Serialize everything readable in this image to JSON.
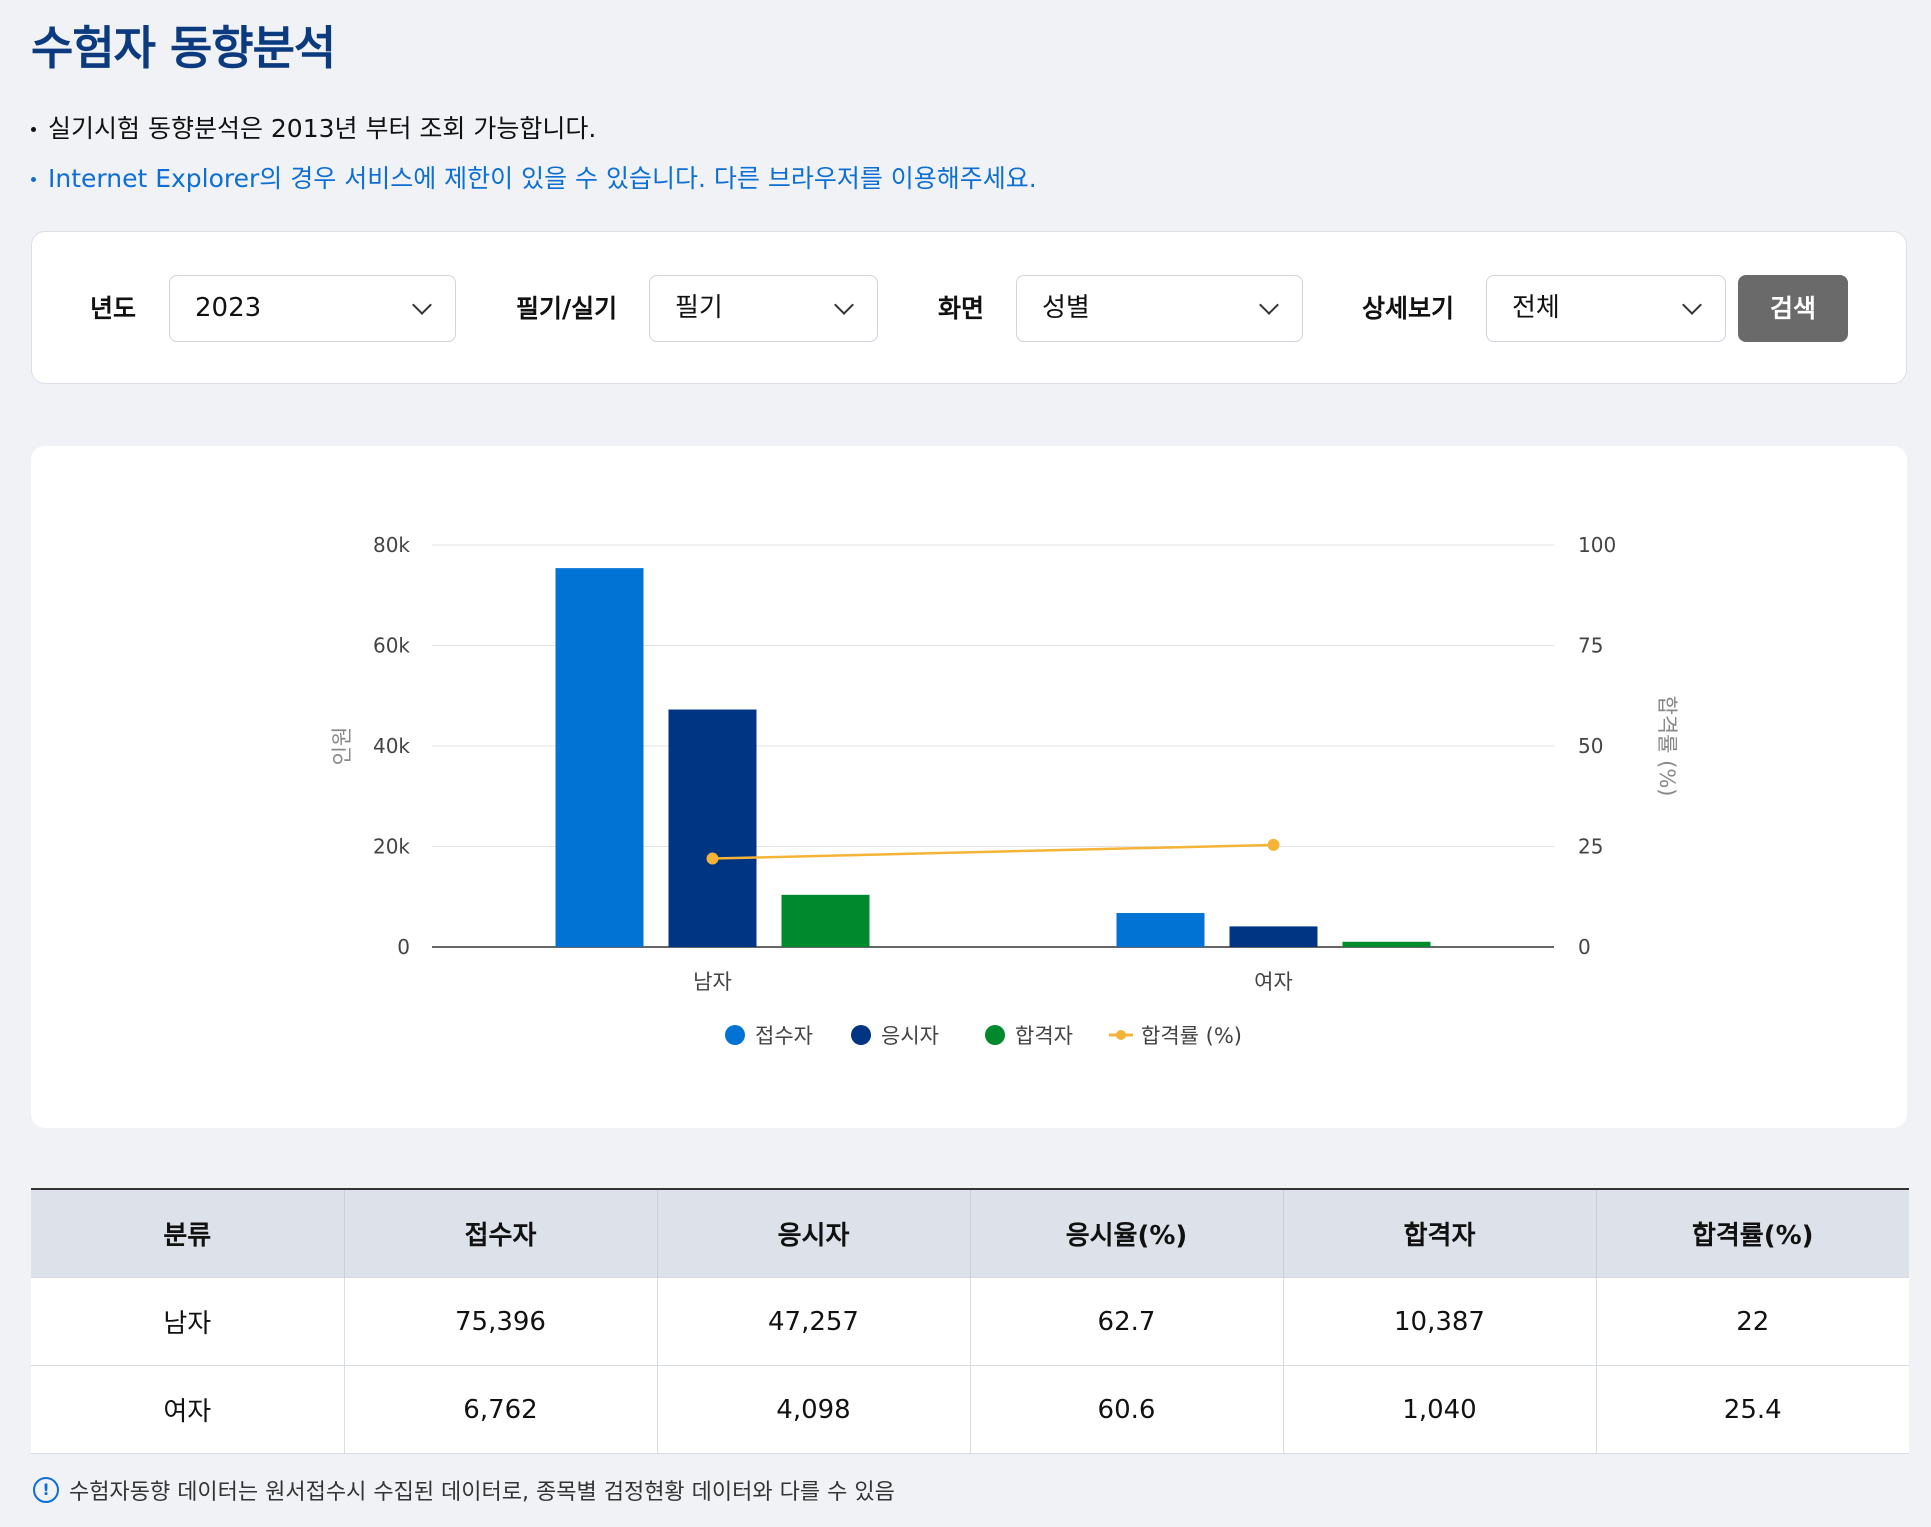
{
  "page_title": "수험자 동향분석",
  "notes": [
    "실기시험 동향분석은 2013년 부터 조회 가능합니다.",
    "Internet Explorer의 경우 서비스에 제한이 있을 수 있습니다. 다른 브라우저를 이용해주세요."
  ],
  "filters": {
    "year": {
      "label": "년도",
      "value": "2023"
    },
    "exam_type": {
      "label": "필기/실기",
      "value": "필기"
    },
    "screen": {
      "label": "화면",
      "value": "성별"
    },
    "detail": {
      "label": "상세보기",
      "value": "전체"
    },
    "search_label": "검색"
  },
  "chart_data": {
    "type": "bar",
    "categories": [
      "남자",
      "여자"
    ],
    "series": [
      {
        "name": "접수자",
        "type": "bar",
        "axis": "left",
        "color": "#0073d4",
        "values": [
          75396,
          6762
        ]
      },
      {
        "name": "응시자",
        "type": "bar",
        "axis": "left",
        "color": "#003584",
        "values": [
          47257,
          4098
        ]
      },
      {
        "name": "합격자",
        "type": "bar",
        "axis": "left",
        "color": "#00892d",
        "values": [
          10387,
          1040
        ]
      },
      {
        "name": "합격률 (%)",
        "type": "line",
        "axis": "right",
        "color": "#f5b338",
        "values": [
          22,
          25.4
        ]
      }
    ],
    "ylabel": "인원",
    "y2label": "합격률 (%)",
    "ylim": [
      0,
      80000
    ],
    "y2lim": [
      0,
      100
    ],
    "yticks": [
      "0",
      "20k",
      "40k",
      "60k",
      "80k"
    ],
    "y2ticks": [
      "0",
      "25",
      "50",
      "75",
      "100"
    ],
    "grid": true,
    "legend": "bottom"
  },
  "table": {
    "headers": [
      "분류",
      "접수자",
      "응시자",
      "응시율(%)",
      "합격자",
      "합격률(%)"
    ],
    "rows": [
      [
        "남자",
        "75,396",
        "47,257",
        "62.7",
        "10,387",
        "22"
      ],
      [
        "여자",
        "6,762",
        "4,098",
        "60.6",
        "1,040",
        "25.4"
      ]
    ]
  },
  "footnote": "수험자동향 데이터는 원서접수시 수집된 데이터로, 종목별 검정현황 데이터와 다를 수 있음",
  "colors": {
    "title": "#0b3a7e",
    "link_note": "#0d6fd3",
    "search_button": "#6a6a6a"
  }
}
